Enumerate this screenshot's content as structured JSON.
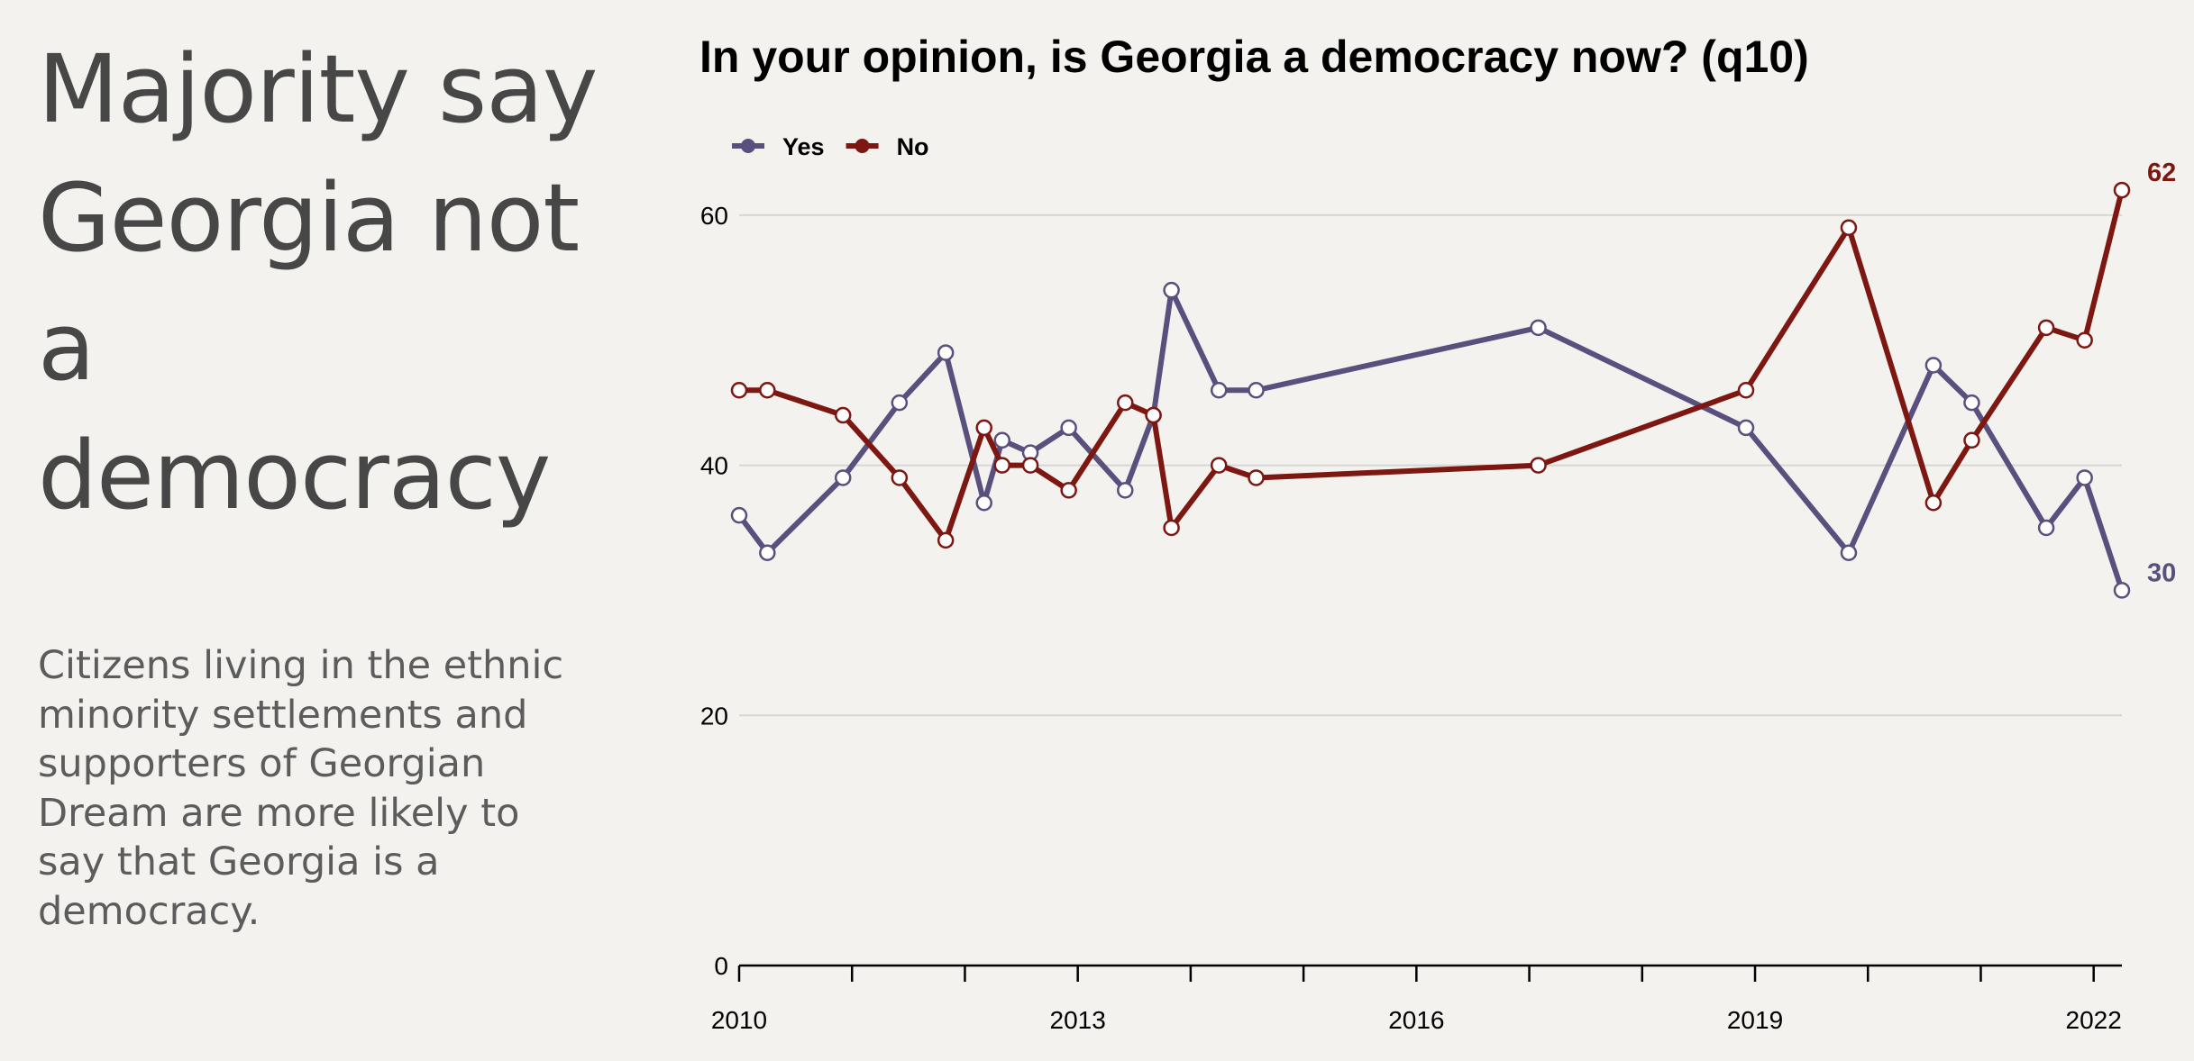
{
  "headline": "Majority say Georgia not a democracy",
  "description": "Citizens living in the ethnic minority settlements and supporters of Georgian Dream are more likely to say that Georgia is a democracy.",
  "chart_data": {
    "type": "line",
    "title": "In your opinion, is Georgia a democracy now? (q10)",
    "xlabel": "",
    "ylabel": "",
    "xlim": [
      2010.0,
      2022.25
    ],
    "ylim": [
      0,
      70
    ],
    "x_ticks": [
      2010,
      2013,
      2016,
      2019,
      2022
    ],
    "y_ticks": [
      0,
      20,
      40,
      60
    ],
    "grid": "horizontal",
    "legend_position": "top-left",
    "series": [
      {
        "name": "Yes",
        "color": "#5b4f7d",
        "end_label": "30",
        "points": [
          [
            2010.0,
            36
          ],
          [
            2010.25,
            33
          ],
          [
            2010.92,
            39
          ],
          [
            2011.42,
            45
          ],
          [
            2011.83,
            49
          ],
          [
            2012.17,
            37
          ],
          [
            2012.33,
            42
          ],
          [
            2012.58,
            41
          ],
          [
            2012.92,
            43
          ],
          [
            2013.42,
            38
          ],
          [
            2013.67,
            44
          ],
          [
            2013.83,
            54
          ],
          [
            2014.25,
            46
          ],
          [
            2014.58,
            46
          ],
          [
            2017.08,
            51
          ],
          [
            2018.92,
            43
          ],
          [
            2019.83,
            33
          ],
          [
            2020.58,
            48
          ],
          [
            2020.92,
            45
          ],
          [
            2021.58,
            35
          ],
          [
            2021.92,
            39
          ],
          [
            2022.25,
            30
          ]
        ]
      },
      {
        "name": "No",
        "color": "#7d1712",
        "end_label": "62",
        "points": [
          [
            2010.0,
            46
          ],
          [
            2010.25,
            46
          ],
          [
            2010.92,
            44
          ],
          [
            2011.42,
            39
          ],
          [
            2011.83,
            34
          ],
          [
            2012.17,
            43
          ],
          [
            2012.33,
            40
          ],
          [
            2012.58,
            40
          ],
          [
            2012.92,
            38
          ],
          [
            2013.42,
            45
          ],
          [
            2013.67,
            44
          ],
          [
            2013.83,
            35
          ],
          [
            2014.25,
            40
          ],
          [
            2014.58,
            39
          ],
          [
            2017.08,
            40
          ],
          [
            2018.92,
            46
          ],
          [
            2019.83,
            59
          ],
          [
            2020.58,
            37
          ],
          [
            2020.92,
            42
          ],
          [
            2021.58,
            51
          ],
          [
            2021.92,
            50
          ],
          [
            2022.25,
            62
          ]
        ]
      }
    ]
  }
}
